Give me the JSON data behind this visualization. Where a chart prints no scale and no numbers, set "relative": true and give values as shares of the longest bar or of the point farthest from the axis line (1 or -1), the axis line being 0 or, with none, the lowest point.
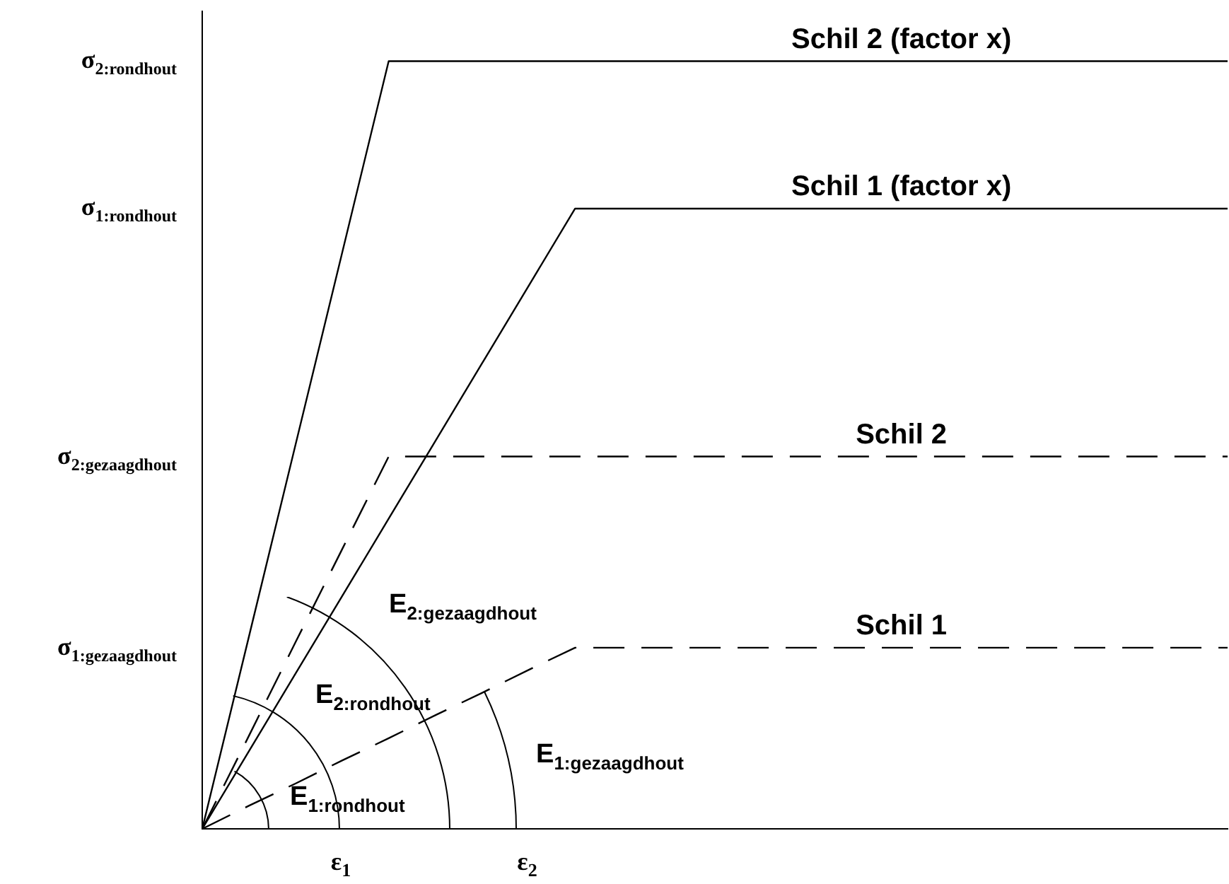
{
  "chart_data": {
    "type": "line",
    "relative": true,
    "legend": false,
    "grid": false,
    "marker": "none",
    "categories": [
      null,
      null,
      null,
      "ε$_{1}$",
      null,
      null,
      null,
      "ε$_{2}$",
      null,
      null,
      null,
      null,
      null,
      null,
      null,
      null,
      null,
      null,
      null,
      null,
      null,
      null,
      null
    ],
    "series": [
      {
        "name": "Schil 2 (factor x)",
        "color": "#000000",
        "line_style": "solid",
        "values": [
          0,
          0.25,
          0.5,
          0.75,
          1,
          1,
          1,
          1,
          1,
          1,
          1,
          1,
          1,
          1,
          1,
          1,
          1,
          1,
          1,
          1,
          1,
          1,
          1
        ]
      },
      {
        "name": "Schil 1 (factor x)",
        "color": "#000000",
        "line_style": "solid",
        "values": [
          0,
          0.101,
          0.202,
          0.303,
          0.404,
          0.505,
          0.606,
          0.707,
          0.808,
          0.808,
          0.808,
          0.808,
          0.808,
          0.808,
          0.808,
          0.808,
          0.808,
          0.808,
          0.808,
          0.808,
          0.808,
          0.808,
          0.808
        ]
      },
      {
        "name": "Schil 2",
        "color": "#000000",
        "line_style": "dashed",
        "values": [
          0,
          0.121,
          0.243,
          0.364,
          0.485,
          0.485,
          0.485,
          0.485,
          0.485,
          0.485,
          0.485,
          0.485,
          0.485,
          0.485,
          0.485,
          0.485,
          0.485,
          0.485,
          0.485,
          0.485,
          0.485,
          0.485,
          0.485
        ]
      },
      {
        "name": "Schil 1",
        "color": "#000000",
        "line_style": "dashed",
        "values": [
          0,
          0.03,
          0.059,
          0.089,
          0.118,
          0.148,
          0.177,
          0.207,
          0.236,
          0.236,
          0.236,
          0.236,
          0.236,
          0.236,
          0.236,
          0.236,
          0.236,
          0.236,
          0.236,
          0.236,
          0.236,
          0.236,
          0.236
        ]
      }
    ],
    "annotations": [
      "σ$_{2:rondhout}$",
      "σ$_{1:rondhout}$",
      "σ$_{2:gezaagdhout}$",
      "σ$_{1:gezaagdhout}$",
      "E$_{1:rondhout}$",
      "E$_{2:rondhout}$",
      "E$_{2:gezaagdhout}$",
      "E$_{1:gezaagdhout}$"
    ]
  }
}
